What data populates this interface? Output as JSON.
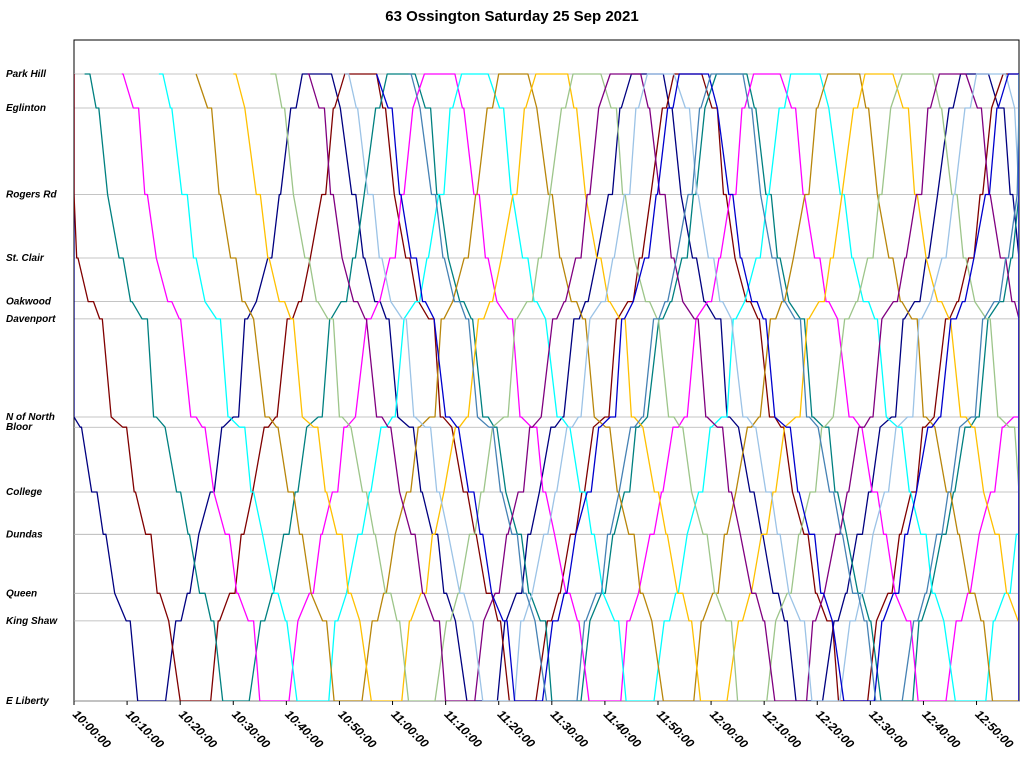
{
  "chart_data": {
    "type": "line",
    "title": "63 Ossington Saturday 25 Sep 2021",
    "xlabel": "",
    "ylabel": "",
    "x_range": [
      "10:00:00",
      "12:58:00"
    ],
    "x_ticks": [
      "10:00:00",
      "10:10:00",
      "10:20:00",
      "10:30:00",
      "10:40:00",
      "10:50:00",
      "11:00:00",
      "11:10:00",
      "11:20:00",
      "11:30:00",
      "11:40:00",
      "11:50:00",
      "12:00:00",
      "12:10:00",
      "12:20:00",
      "12:30:00",
      "12:40:00",
      "12:50:00"
    ],
    "y_stops": [
      {
        "name": "Park Hill",
        "pos": 0
      },
      {
        "name": "Eglinton",
        "pos": 5.3
      },
      {
        "name": "Rogers Rd",
        "pos": 18.8
      },
      {
        "name": "St. Clair",
        "pos": 28.7
      },
      {
        "name": "Oakwood",
        "pos": 35.5
      },
      {
        "name": "Davenport",
        "pos": 38.2
      },
      {
        "name": "N of North",
        "pos": 53.5
      },
      {
        "name": "Bloor",
        "pos": 55.1
      },
      {
        "name": "College",
        "pos": 65.2
      },
      {
        "name": "Dundas",
        "pos": 71.8
      },
      {
        "name": "Queen",
        "pos": 81.0
      },
      {
        "name": "King Shaw",
        "pos": 85.3
      },
      {
        "name": "E Liberty",
        "pos": 97.8
      }
    ],
    "grid": true,
    "legend": "none",
    "series": [
      {
        "color": "#000080",
        "start_min": -14,
        "start_dir": 1
      },
      {
        "color": "#800000",
        "start_min": -6,
        "start_dir": 1
      },
      {
        "color": "#008080",
        "start_min": 2,
        "start_dir": 1
      },
      {
        "color": "#FF00FF",
        "start_min": 9,
        "start_dir": 1
      },
      {
        "color": "#00FFFF",
        "start_min": 16,
        "start_dir": 1
      },
      {
        "color": "#B8860B",
        "start_min": 23,
        "start_dir": 1
      },
      {
        "color": "#FFC000",
        "start_min": 30,
        "start_dir": 1
      },
      {
        "color": "#9DC58A",
        "start_min": 37,
        "start_dir": 1
      },
      {
        "color": "#800080",
        "start_min": 44,
        "start_dir": 1
      },
      {
        "color": "#9CC3E6",
        "start_min": 51,
        "start_dir": 1
      },
      {
        "color": "#0000CD",
        "start_min": 57,
        "start_dir": 1
      },
      {
        "color": "#4682B4",
        "start_min": 63,
        "start_dir": 1
      }
    ],
    "trip_minutes": 26,
    "layover_minutes": 5
  }
}
